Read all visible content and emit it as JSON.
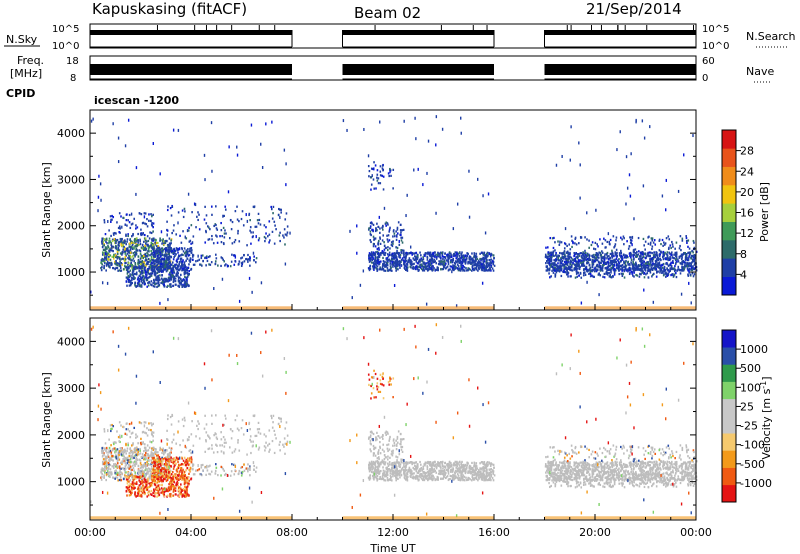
{
  "header": {
    "station": "Kapuskasing (fitACF)",
    "beam": "Beam 02",
    "date": "21/Sep/2014"
  },
  "strip": {
    "nsky_label": "N.Sky",
    "nsky_ticks": [
      "10^5",
      "10^0"
    ],
    "nsearch_label": "N.Search",
    "freq_label_line1": "Freq.",
    "freq_label_line2": "[MHz]",
    "freq_ticks": [
      "18",
      "8"
    ],
    "nave_label": "Nave",
    "nave_ticks": [
      "60",
      "0"
    ],
    "cpid_label": "CPID",
    "cpid_value": "icescan -1200"
  },
  "colors": {
    "power": [
      "#0a1ad6",
      "#1f3fa6",
      "#2d6b6a",
      "#3f9a58",
      "#a6cf3c",
      "#f1c40f",
      "#f08c1a",
      "#e8531b",
      "#d71414"
    ],
    "velocity": [
      "#e51414",
      "#f05a12",
      "#f39a1a",
      "#f5c96e",
      "#c8c8c8",
      "#c8c8c8",
      "#7fd26a",
      "#2f9a4b",
      "#2a4fa8",
      "#1414c8"
    ],
    "ground_scatter": "#bdbdbd"
  },
  "chart_data": [
    {
      "type": "heatmap",
      "panel": "power",
      "xlabel": "",
      "ylabel": "Slant Range [km]",
      "x_ticks": [
        "00:00",
        "04:00",
        "08:00",
        "12:00",
        "16:00",
        "20:00",
        "00:00"
      ],
      "x_range_hours": [
        0,
        24
      ],
      "y_ticks": [
        1000,
        2000,
        3000,
        4000
      ],
      "y_range": [
        180,
        4500
      ],
      "data_gaps_hours": [
        [
          8,
          10
        ],
        [
          16,
          18
        ]
      ],
      "colorbar": {
        "label": "Power [dB]",
        "ticks": [
          4,
          8,
          12,
          16,
          20,
          24,
          28
        ],
        "range": [
          0,
          32
        ]
      },
      "scatter_bands": [
        {
          "t0": 0.5,
          "t1": 3.0,
          "r0": 1100,
          "r1": 1700
        },
        {
          "t0": 1.5,
          "t1": 3.8,
          "r0": 700,
          "r1": 1100
        },
        {
          "t0": 3.0,
          "t1": 8.0,
          "r0": 1500,
          "r1": 2500
        },
        {
          "t0": 11.0,
          "t1": 16.0,
          "r0": 1000,
          "r1": 1500
        },
        {
          "t0": 18.0,
          "t1": 24.0,
          "r0": 1000,
          "r1": 1500
        }
      ]
    },
    {
      "type": "heatmap",
      "panel": "velocity",
      "xlabel": "Time UT",
      "ylabel": "Slant Range [km]",
      "x_ticks": [
        "00:00",
        "04:00",
        "08:00",
        "12:00",
        "16:00",
        "20:00",
        "00:00"
      ],
      "x_range_hours": [
        0,
        24
      ],
      "y_ticks": [
        1000,
        2000,
        3000,
        4000
      ],
      "y_range": [
        180,
        4500
      ],
      "data_gaps_hours": [
        [
          8,
          10
        ],
        [
          16,
          18
        ]
      ],
      "colorbar": {
        "label": "Velocity [m s",
        "label_superscript": "-1",
        "label_close": "]",
        "ticks": [
          "1000",
          "500",
          "100",
          "25",
          "-25",
          "-100",
          "-500",
          "-1000"
        ]
      }
    }
  ]
}
